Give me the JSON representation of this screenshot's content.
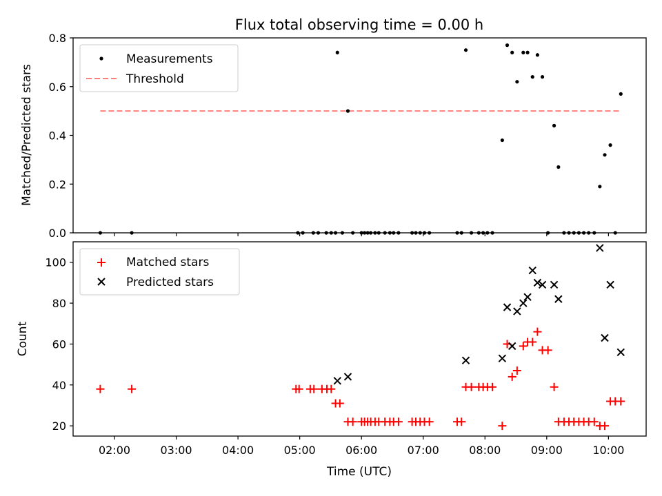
{
  "chart_data": [
    {
      "type": "scatter",
      "title": "Flux total observing time = 0.00 h",
      "xlabel": "",
      "ylabel": "Matched/Predicted stars",
      "ylim": [
        0,
        0.8
      ],
      "yticks": [
        0.0,
        0.2,
        0.4,
        0.6,
        0.8
      ],
      "yticklabels": [
        "0.0",
        "0.2",
        "0.4",
        "0.6",
        "0.8"
      ],
      "xlim_hours": [
        1.33,
        10.61
      ],
      "legend_position": "top-left",
      "series": [
        {
          "name": "Measurements",
          "marker": "dot",
          "color": "#000000",
          "x_hours": [
            1.77,
            2.28,
            4.97,
            5.05,
            5.22,
            5.3,
            5.43,
            5.51,
            5.58,
            5.61,
            5.69,
            5.78,
            5.86,
            6.0,
            6.05,
            6.1,
            6.15,
            6.22,
            6.28,
            6.38,
            6.46,
            6.52,
            6.6,
            6.82,
            6.88,
            6.95,
            7.02,
            7.1,
            7.55,
            7.62,
            7.69,
            7.78,
            7.9,
            7.97,
            8.04,
            8.12,
            8.28,
            8.36,
            8.44,
            8.52,
            8.62,
            8.69,
            8.77,
            8.85,
            8.93,
            9.02,
            9.12,
            9.19,
            9.28,
            9.36,
            9.44,
            9.52,
            9.6,
            9.68,
            9.77,
            9.86,
            9.94,
            10.03,
            10.11,
            10.2
          ],
          "y": [
            0,
            0,
            0,
            0,
            0,
            0,
            0,
            0,
            0,
            0.74,
            0,
            0.5,
            0,
            0,
            0,
            0,
            0,
            0,
            0,
            0,
            0,
            0,
            0,
            0,
            0,
            0,
            0,
            0,
            0,
            0,
            0.75,
            0,
            0,
            0,
            0,
            0,
            0.38,
            0.77,
            0.74,
            0.62,
            0.74,
            0.74,
            0.64,
            0.73,
            0.64,
            0,
            0.44,
            0.27,
            0,
            0,
            0,
            0,
            0,
            0,
            0,
            0.19,
            0.32,
            0.36,
            0,
            0.57
          ]
        },
        {
          "name": "Threshold",
          "marker": "dashed-line",
          "color": "#ff7f7f",
          "x_hours": [
            1.77,
            10.2
          ],
          "y": [
            0.5,
            0.5
          ]
        }
      ]
    },
    {
      "type": "scatter",
      "title": "",
      "xlabel": "Time (UTC)",
      "ylabel": "Count",
      "ylim": [
        15,
        110
      ],
      "yticks": [
        20,
        40,
        60,
        80,
        100
      ],
      "yticklabels": [
        "20",
        "40",
        "60",
        "80",
        "100"
      ],
      "xlim_hours": [
        1.33,
        10.61
      ],
      "xticks_hours": [
        2,
        3,
        4,
        5,
        6,
        7,
        8,
        9,
        10
      ],
      "xticklabels": [
        "02:00",
        "03:00",
        "04:00",
        "05:00",
        "06:00",
        "07:00",
        "08:00",
        "09:00",
        "10:00"
      ],
      "legend_position": "top-left",
      "series": [
        {
          "name": "Matched stars",
          "marker": "plus",
          "color": "#ff0000",
          "x_hours": [
            1.77,
            2.28,
            4.94,
            4.99,
            5.17,
            5.23,
            5.36,
            5.44,
            5.51,
            5.58,
            5.65,
            5.78,
            5.86,
            6.0,
            6.05,
            6.1,
            6.15,
            6.22,
            6.28,
            6.38,
            6.46,
            6.52,
            6.6,
            6.82,
            6.88,
            6.95,
            7.02,
            7.1,
            7.55,
            7.62,
            7.69,
            7.78,
            7.9,
            7.97,
            8.04,
            8.12,
            8.28,
            8.36,
            8.44,
            8.52,
            8.62,
            8.69,
            8.77,
            8.85,
            8.93,
            9.02,
            9.12,
            9.19,
            9.28,
            9.36,
            9.44,
            9.52,
            9.6,
            9.68,
            9.77,
            9.86,
            9.94,
            10.03,
            10.11,
            10.2
          ],
          "y": [
            38,
            38,
            38,
            38,
            38,
            38,
            38,
            38,
            38,
            31,
            31,
            22,
            22,
            22,
            22,
            22,
            22,
            22,
            22,
            22,
            22,
            22,
            22,
            22,
            22,
            22,
            22,
            22,
            22,
            22,
            39,
            39,
            39,
            39,
            39,
            39,
            20,
            60,
            44,
            47,
            59,
            61,
            61,
            66,
            57,
            57,
            39,
            22,
            22,
            22,
            22,
            22,
            22,
            22,
            22,
            20,
            20,
            32,
            32,
            32
          ]
        },
        {
          "name": "Predicted stars",
          "marker": "x",
          "color": "#000000",
          "x_hours": [
            5.61,
            5.78,
            7.69,
            8.28,
            8.36,
            8.44,
            8.52,
            8.62,
            8.69,
            8.77,
            8.85,
            8.93,
            9.12,
            9.19,
            9.86,
            9.94,
            10.03,
            10.2
          ],
          "y": [
            42,
            44,
            52,
            53,
            78,
            59,
            76,
            80,
            83,
            96,
            90,
            89,
            89,
            82,
            107,
            63,
            89,
            56
          ]
        }
      ]
    }
  ]
}
